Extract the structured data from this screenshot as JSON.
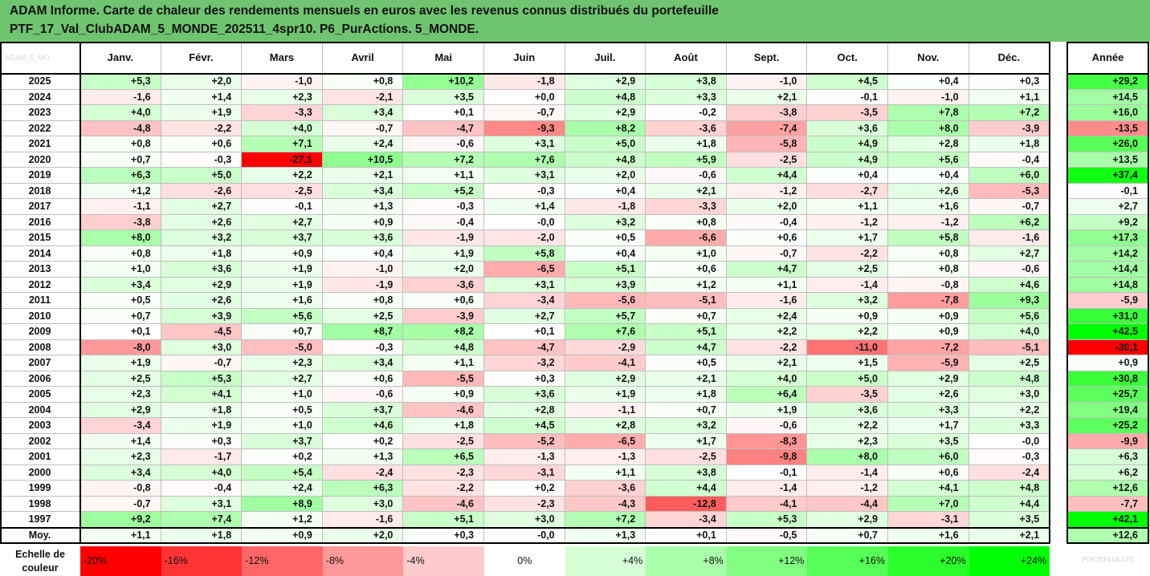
{
  "title": {
    "line1": "ADAM Informe. Carte de chaleur des rendements mensuels en euros avec les revenus connus distribués du portefeuille",
    "line2": "PTF_17_Val_ClubADAM_5_MONDE_202511_4spr10. P6_PurActions. 5_MONDE."
  },
  "corner_label": "ADAM_5_MO",
  "year_header": "Année",
  "avg_label": "Moy.",
  "scale_label": "Echelle de couleur",
  "watermark": "PORTEFEUILLES",
  "chart_data": {
    "type": "heatmap",
    "columns": [
      "Janv.",
      "Févr.",
      "Mars",
      "Avril",
      "Mai",
      "Juin",
      "Juil.",
      "Août",
      "Sept.",
      "Oct.",
      "Nov.",
      "Déc."
    ],
    "rows": [
      {
        "year": "2025",
        "values": [
          "+5,3",
          "+2,0",
          "-1,0",
          "+0,8",
          "+10,2",
          "-1,8",
          "+2,9",
          "+3,8",
          "-1,0",
          "+4,5",
          "+0,4",
          "+0,3"
        ],
        "annual": "+29,2"
      },
      {
        "year": "2024",
        "values": [
          "-1,6",
          "+1,4",
          "+2,3",
          "-2,1",
          "+3,5",
          "+0,0",
          "+4,8",
          "+3,3",
          "+2,1",
          "-0,1",
          "-1,0",
          "+1,1"
        ],
        "annual": "+14,5"
      },
      {
        "year": "2023",
        "values": [
          "+4,0",
          "+1,9",
          "-3,3",
          "+3,4",
          "+0,1",
          "-0,7",
          "+2,9",
          "-0,2",
          "-3,8",
          "-3,5",
          "+7,8",
          "+7,2"
        ],
        "annual": "+16,0"
      },
      {
        "year": "2022",
        "values": [
          "-4,8",
          "-2,2",
          "+4,0",
          "-0,7",
          "-4,7",
          "-9,3",
          "+8,2",
          "-3,6",
          "-7,4",
          "+3,6",
          "+8,0",
          "-3,9"
        ],
        "annual": "-13,5"
      },
      {
        "year": "2021",
        "values": [
          "+0,8",
          "+0,6",
          "+7,1",
          "+2,4",
          "-0,6",
          "+3,1",
          "+5,0",
          "+1,8",
          "-5,8",
          "+4,9",
          "+2,8",
          "+1,8"
        ],
        "annual": "+26,0"
      },
      {
        "year": "2020",
        "values": [
          "+0,7",
          "-0,3",
          "-27,1",
          "+10,5",
          "+7,2",
          "+7,6",
          "+4,8",
          "+5,9",
          "-2,5",
          "+4,9",
          "+5,6",
          "-0,4"
        ],
        "annual": "+13,5"
      },
      {
        "year": "2019",
        "values": [
          "+6,3",
          "+5,0",
          "+2,2",
          "+2,1",
          "+1,1",
          "+3,1",
          "+2,0",
          "-0,6",
          "+4,4",
          "+0,4",
          "+0,4",
          "+6,0"
        ],
        "annual": "+37,4"
      },
      {
        "year": "2018",
        "values": [
          "+1,2",
          "-2,6",
          "-2,5",
          "+3,4",
          "+5,2",
          "-0,3",
          "+0,4",
          "+2,1",
          "-1,2",
          "-2,7",
          "+2,6",
          "-5,3"
        ],
        "annual": "-0,1"
      },
      {
        "year": "2017",
        "values": [
          "-1,1",
          "+2,7",
          "-0,1",
          "+1,3",
          "-0,3",
          "+1,4",
          "-1,8",
          "-3,3",
          "+2,0",
          "+1,1",
          "+1,6",
          "-0,7"
        ],
        "annual": "+2,7"
      },
      {
        "year": "2016",
        "values": [
          "-3,8",
          "+2,6",
          "+2,7",
          "+0,9",
          "-0,4",
          "-0,0",
          "+3,2",
          "+0,8",
          "-0,4",
          "-1,2",
          "-1,2",
          "+6,2"
        ],
        "annual": "+9,2"
      },
      {
        "year": "2015",
        "values": [
          "+8,0",
          "+3,2",
          "+3,7",
          "+3,6",
          "-1,9",
          "-2,0",
          "+0,5",
          "-6,6",
          "+0,6",
          "+1,7",
          "+5,8",
          "-1,6"
        ],
        "annual": "+17,3"
      },
      {
        "year": "2014",
        "values": [
          "+0,8",
          "+1,8",
          "+0,9",
          "+0,4",
          "+1,9",
          "+5,8",
          "+0,4",
          "+1,0",
          "-0,7",
          "-2,2",
          "+0,8",
          "+2,7"
        ],
        "annual": "+14,2"
      },
      {
        "year": "2013",
        "values": [
          "+1,0",
          "+3,6",
          "+1,9",
          "-1,0",
          "+2,0",
          "-6,5",
          "+5,1",
          "+0,6",
          "+4,7",
          "+2,5",
          "+0,8",
          "-0,6"
        ],
        "annual": "+14,4"
      },
      {
        "year": "2012",
        "values": [
          "+3,4",
          "+2,9",
          "+1,9",
          "-1,9",
          "-3,6",
          "+3,1",
          "+3,9",
          "+1,2",
          "+1,1",
          "-1,4",
          "-0,8",
          "+4,6"
        ],
        "annual": "+14,8"
      },
      {
        "year": "2011",
        "values": [
          "+0,5",
          "+2,6",
          "+1,6",
          "+0,8",
          "+0,6",
          "-3,4",
          "-5,6",
          "-5,1",
          "-1,6",
          "+3,2",
          "-7,8",
          "+9,3"
        ],
        "annual": "-5,9"
      },
      {
        "year": "2010",
        "values": [
          "+0,7",
          "+3,9",
          "+5,6",
          "+2,5",
          "-3,9",
          "+2,7",
          "+5,7",
          "+0,7",
          "+2,4",
          "+0,9",
          "+0,9",
          "+5,6"
        ],
        "annual": "+31,0"
      },
      {
        "year": "2009",
        "values": [
          "+0,1",
          "-4,5",
          "+0,7",
          "+8,7",
          "+8,2",
          "+0,1",
          "+7,6",
          "+5,1",
          "+2,2",
          "+2,2",
          "+0,9",
          "+4,0"
        ],
        "annual": "+42,5"
      },
      {
        "year": "2008",
        "values": [
          "-8,0",
          "+3,0",
          "-5,0",
          "-0,3",
          "+4,8",
          "-4,7",
          "-2,9",
          "+4,7",
          "-2,2",
          "-11,0",
          "-7,2",
          "-5,1"
        ],
        "annual": "-30,1"
      },
      {
        "year": "2007",
        "values": [
          "+1,9",
          "-0,7",
          "+2,3",
          "+3,4",
          "+1,1",
          "-3,2",
          "-4,1",
          "+0,5",
          "+2,1",
          "+1,5",
          "-5,9",
          "+2,5"
        ],
        "annual": "+0,9"
      },
      {
        "year": "2006",
        "values": [
          "+2,5",
          "+5,3",
          "+2,7",
          "+0,6",
          "-5,5",
          "+0,3",
          "+2,9",
          "+2,1",
          "+4,0",
          "+5,0",
          "+2,9",
          "+4,8"
        ],
        "annual": "+30,8"
      },
      {
        "year": "2005",
        "values": [
          "+2,3",
          "+4,1",
          "+1,0",
          "-0,6",
          "+0,9",
          "+3,6",
          "+1,9",
          "+1,8",
          "+6,4",
          "-3,5",
          "+2,6",
          "+3,0"
        ],
        "annual": "+25,7"
      },
      {
        "year": "2004",
        "values": [
          "+2,9",
          "+1,8",
          "+0,5",
          "+3,7",
          "-4,6",
          "+2,8",
          "-1,1",
          "+0,7",
          "+1,9",
          "+3,6",
          "+3,3",
          "+2,2"
        ],
        "annual": "+19,4"
      },
      {
        "year": "2003",
        "values": [
          "-3,4",
          "+1,9",
          "+1,0",
          "+4,6",
          "+1,8",
          "+4,5",
          "+2,8",
          "+3,2",
          "-0,6",
          "+2,2",
          "+1,7",
          "+3,3"
        ],
        "annual": "+25,2"
      },
      {
        "year": "2002",
        "values": [
          "+1,4",
          "+0,3",
          "+3,7",
          "+0,2",
          "-2,5",
          "-5,2",
          "-6,5",
          "+1,7",
          "-8,3",
          "+2,3",
          "+3,5",
          "-0,0"
        ],
        "annual": "-9,9"
      },
      {
        "year": "2001",
        "values": [
          "+2,3",
          "-1,7",
          "+0,2",
          "+1,3",
          "+6,5",
          "-1,3",
          "-1,3",
          "-2,5",
          "-9,8",
          "+8,0",
          "+6,0",
          "-0,3"
        ],
        "annual": "+6,3"
      },
      {
        "year": "2000",
        "values": [
          "+3,4",
          "+4,0",
          "+5,4",
          "-2,4",
          "-2,3",
          "-3,1",
          "+1,1",
          "+3,8",
          "-0,1",
          "-1,4",
          "+0,6",
          "-2,4"
        ],
        "annual": "+6,2"
      },
      {
        "year": "1999",
        "values": [
          "-0,8",
          "-0,4",
          "+2,4",
          "+6,3",
          "-2,2",
          "+0,2",
          "-3,6",
          "+4,4",
          "-1,4",
          "-1,2",
          "+4,1",
          "+4,8"
        ],
        "annual": "+12,6"
      },
      {
        "year": "1998",
        "values": [
          "-0,7",
          "+3,1",
          "+8,9",
          "+3,0",
          "-4,6",
          "-2,3",
          "-4,3",
          "-12,8",
          "-4,1",
          "-4,4",
          "+7,0",
          "+4,4"
        ],
        "annual": "-7,7"
      },
      {
        "year": "1997",
        "values": [
          "+9,2",
          "+7,4",
          "+1,2",
          "-1,6",
          "+5,1",
          "+3,0",
          "+7,2",
          "-3,4",
          "+5,3",
          "+2,9",
          "-3,1",
          "+3,5"
        ],
        "annual": "+42,1"
      }
    ],
    "average": {
      "values": [
        "+1,1",
        "+1,8",
        "+0,9",
        "+2,0",
        "+0,3",
        "-0,0",
        "+1,3",
        "+0,1",
        "-0,5",
        "+0,7",
        "+1,6",
        "+2,1"
      ],
      "annual": "+12,6"
    },
    "scale": [
      "-20%",
      "-16%",
      "-12%",
      "-8%",
      "-4%",
      "0%",
      "+4%",
      "+8%",
      "+12%",
      "+16%",
      "+20%",
      "+24%"
    ],
    "monthly_color_range": [
      -20,
      24
    ],
    "annual_color_range": [
      -30,
      40
    ],
    "colors": {
      "negative": "#ff0000",
      "positive": "#00ff00",
      "neutral": "#ffffff",
      "title_bg": "#6fc46f"
    }
  }
}
